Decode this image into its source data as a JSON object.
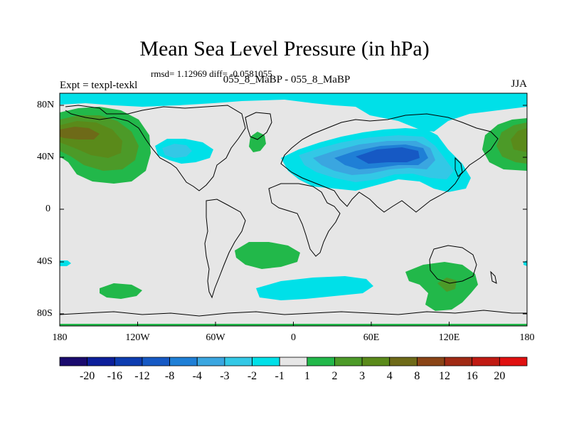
{
  "title": "Mean Sea Level Pressure (in hPa)",
  "stats": "rmsd= 1.12969 diff= -0.0581055",
  "subtitle": "055_8_MaBP - 055_8_MaBP",
  "expt_label": "Expt = texpl-texkl",
  "season": "JJA",
  "chart_data": {
    "type": "heatmap",
    "title": "Mean Sea Level Pressure (in hPa)",
    "projection": "cylindrical-equidistant",
    "lon_range": [
      -180,
      180
    ],
    "lat_range": [
      -90,
      90
    ],
    "x_ticks": [
      "180",
      "120W",
      "60W",
      "0",
      "60E",
      "120E",
      "180"
    ],
    "y_ticks": [
      "80N",
      "40N",
      "0",
      "40S",
      "80S"
    ],
    "colorbar": {
      "labels": [
        "-20",
        "-16",
        "-12",
        "-8",
        "-4",
        "-3",
        "-2",
        "-1",
        "1",
        "2",
        "3",
        "4",
        "8",
        "12",
        "16",
        "20"
      ],
      "colors": [
        "#1a0a6e",
        "#0c1f9a",
        "#0d3cb0",
        "#1659c4",
        "#1f7fd6",
        "#3aa6e0",
        "#33c8e6",
        "#00e0e8",
        "#e6e6e6",
        "#22b84a",
        "#4c9a28",
        "#5a8a1a",
        "#6e6a18",
        "#8a4416",
        "#a02a14",
        "#c01a12",
        "#e01010"
      ]
    }
  }
}
